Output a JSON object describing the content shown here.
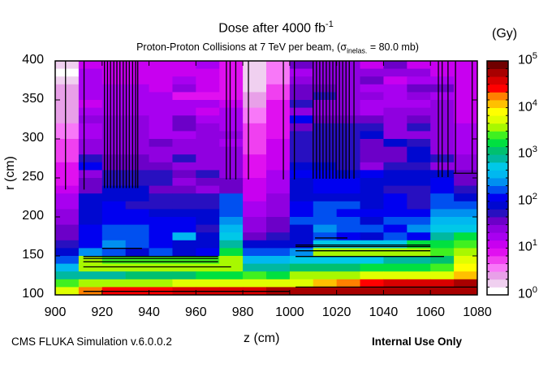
{
  "chart_data": {
    "type": "heatmap",
    "title": {
      "text": "Dose after 4000 fb",
      "sup": "-1"
    },
    "subtitle": {
      "pre": "Proton-Proton Collisions at 7 TeV per beam, (σ",
      "sub": "inelas.",
      "post": " = 80.0 mb)"
    },
    "xlabel": "z (cm)",
    "ylabel": "r (cm)",
    "xlim": [
      900,
      1080
    ],
    "ylim": [
      100,
      400
    ],
    "x_ticks": [
      "900",
      "920",
      "940",
      "960",
      "980",
      "1000",
      "1020",
      "1040",
      "1060",
      "1080"
    ],
    "y_ticks": [
      "100",
      "150",
      "200",
      "250",
      "300",
      "350",
      "400"
    ],
    "colorbar": {
      "unit": "(Gy)",
      "scale": "log",
      "range": [
        1,
        100000
      ],
      "ticks": [
        {
          "base": "10",
          "exp": "0"
        },
        {
          "base": "10",
          "exp": "1"
        },
        {
          "base": "10",
          "exp": "2"
        },
        {
          "base": "10",
          "exp": "3"
        },
        {
          "base": "10",
          "exp": "4"
        },
        {
          "base": "10",
          "exp": "5"
        }
      ],
      "palette": [
        "#ffffff",
        "#f0d0f0",
        "#e8a0e8",
        "#f878f8",
        "#f040f0",
        "#e010f0",
        "#c800f0",
        "#a800f0",
        "#9000e0",
        "#6c00c8",
        "#2810c0",
        "#0008d0",
        "#0000f0",
        "#0050f0",
        "#0090f0",
        "#00b8f0",
        "#00c8e8",
        "#00b8a0",
        "#00c070",
        "#00e040",
        "#40f020",
        "#a8f800",
        "#e0ff00",
        "#ffff00",
        "#ffc000",
        "#ff8000",
        "#ff0000",
        "#d80000",
        "#a80000",
        "#700000"
      ]
    },
    "grid": {
      "z_bins_start": [
        900,
        910,
        920,
        930,
        940,
        950,
        960,
        970,
        980,
        990,
        1000,
        1010,
        1020,
        1030,
        1040,
        1050,
        1060,
        1070
      ],
      "z_bin_width": 10,
      "r_bin_width": 10,
      "value_units": "log10(dose/Gy) x 6",
      "rows_from_r400_down": [
        [
          1,
          6,
          6,
          6,
          6,
          6,
          7,
          5,
          1,
          3,
          9,
          8,
          8,
          6,
          9,
          6,
          6,
          6
        ],
        [
          0,
          7,
          6,
          6,
          6,
          6,
          6,
          5,
          1,
          3,
          7,
          8,
          8,
          8,
          8,
          8,
          6,
          6
        ],
        [
          1,
          7,
          6,
          6,
          6,
          7,
          6,
          5,
          1,
          3,
          8,
          8,
          8,
          9,
          6,
          7,
          7,
          6
        ],
        [
          2,
          7,
          7,
          7,
          6,
          8,
          6,
          5,
          1,
          4,
          9,
          9,
          8,
          7,
          7,
          9,
          9,
          6
        ],
        [
          2,
          7,
          7,
          7,
          7,
          5,
          5,
          5,
          2,
          4,
          9,
          10,
          8,
          8,
          7,
          8,
          7,
          6
        ],
        [
          2,
          6,
          7,
          7,
          7,
          7,
          7,
          6,
          2,
          5,
          10,
          8,
          8,
          7,
          7,
          7,
          8,
          6
        ],
        [
          2,
          7,
          7,
          7,
          7,
          7,
          6,
          7,
          3,
          5,
          8,
          8,
          8,
          7,
          8,
          8,
          8,
          6
        ],
        [
          2,
          8,
          8,
          8,
          7,
          9,
          7,
          7,
          3,
          5,
          12,
          9,
          9,
          9,
          8,
          9,
          8,
          6
        ],
        [
          3,
          7,
          8,
          8,
          7,
          9,
          8,
          7,
          4,
          5,
          9,
          10,
          10,
          10,
          8,
          10,
          8,
          7
        ],
        [
          3,
          7,
          8,
          8,
          7,
          7,
          8,
          8,
          4,
          5,
          10,
          10,
          10,
          11,
          8,
          8,
          8,
          7
        ],
        [
          4,
          8,
          8,
          8,
          9,
          8,
          8,
          7,
          4,
          6,
          10,
          10,
          10,
          9,
          11,
          10,
          8,
          7
        ],
        [
          4,
          8,
          8,
          8,
          8,
          8,
          8,
          8,
          4,
          6,
          10,
          10,
          10,
          9,
          9,
          11,
          8,
          7
        ],
        [
          4,
          10,
          9,
          9,
          8,
          10,
          8,
          8,
          5,
          6,
          10,
          10,
          10,
          9,
          9,
          11,
          10,
          8
        ],
        [
          5,
          12,
          9,
          9,
          9,
          8,
          8,
          8,
          5,
          6,
          11,
          11,
          10,
          8,
          10,
          10,
          8,
          8
        ],
        [
          5,
          8,
          10,
          10,
          10,
          9,
          10,
          8,
          5,
          7,
          12,
          12,
          11,
          12,
          11,
          11,
          11,
          9
        ],
        [
          5,
          9,
          10,
          10,
          10,
          8,
          9,
          9,
          6,
          7,
          11,
          12,
          12,
          11,
          11,
          11,
          12,
          9
        ],
        [
          6,
          9,
          11,
          11,
          9,
          9,
          8,
          9,
          6,
          7,
          11,
          12,
          12,
          11,
          10,
          10,
          12,
          10
        ],
        [
          7,
          11,
          11,
          11,
          10,
          10,
          10,
          13,
          6,
          8,
          11,
          11,
          11,
          11,
          12,
          10,
          13,
          11
        ],
        [
          7,
          11,
          12,
          10,
          10,
          10,
          10,
          13,
          7,
          8,
          12,
          13,
          13,
          11,
          12,
          10,
          13,
          13
        ],
        [
          8,
          11,
          12,
          12,
          11,
          11,
          11,
          13,
          7,
          8,
          12,
          13,
          12,
          12,
          12,
          12,
          14,
          14
        ],
        [
          8,
          11,
          12,
          12,
          12,
          12,
          11,
          14,
          8,
          9,
          13,
          13,
          13,
          11,
          13,
          13,
          15,
          15
        ],
        [
          9,
          12,
          13,
          13,
          12,
          12,
          10,
          15,
          8,
          9,
          11,
          14,
          13,
          13,
          12,
          14,
          16,
          16
        ],
        [
          9,
          12,
          13,
          13,
          12,
          15,
          11,
          16,
          9,
          10,
          11,
          13,
          12,
          11,
          13,
          12,
          17,
          19
        ],
        [
          10,
          12,
          14,
          13,
          12,
          11,
          11,
          17,
          11,
          11,
          11,
          16,
          16,
          16,
          16,
          19,
          19,
          20
        ],
        [
          11,
          14,
          13,
          11,
          13,
          11,
          12,
          19,
          13,
          13,
          14,
          21,
          21,
          21,
          21,
          21,
          20,
          21
        ],
        [
          13,
          21,
          20,
          20,
          20,
          20,
          20,
          21,
          15,
          15,
          16,
          16,
          16,
          16,
          17,
          17,
          18,
          22
        ],
        [
          15,
          21,
          21,
          21,
          21,
          21,
          21,
          21,
          17,
          17,
          18,
          18,
          18,
          19,
          19,
          19,
          20,
          23
        ],
        [
          17,
          17,
          17,
          18,
          18,
          18,
          19,
          19,
          20,
          19,
          21,
          21,
          21,
          22,
          22,
          22,
          22,
          24
        ],
        [
          20,
          21,
          21,
          21,
          21,
          22,
          22,
          22,
          22,
          22,
          22,
          24,
          25,
          26,
          27,
          27,
          27,
          28
        ],
        [
          22,
          25,
          26,
          26,
          26,
          27,
          27,
          27,
          27,
          28,
          28,
          28,
          28,
          28,
          28,
          28,
          28,
          28
        ]
      ]
    },
    "geometry_lines_z_r": [
      [
        904.4,
        400,
        904.4,
        235
      ],
      [
        912.3,
        400,
        912.3,
        235
      ],
      [
        921,
        400,
        921,
        237
      ],
      [
        922.3,
        400,
        922.3,
        237
      ],
      [
        923.6,
        400,
        923.6,
        237
      ],
      [
        925,
        400,
        925,
        237
      ],
      [
        926.3,
        400,
        926.3,
        237
      ],
      [
        927.6,
        400,
        927.6,
        237
      ],
      [
        929,
        400,
        929,
        237
      ],
      [
        930.3,
        400,
        930.3,
        237
      ],
      [
        931.6,
        400,
        931.6,
        237
      ],
      [
        933,
        400,
        933,
        237
      ],
      [
        934.3,
        400,
        934.3,
        237
      ],
      [
        935.2,
        400,
        935.2,
        237
      ],
      [
        973,
        400,
        973,
        248
      ],
      [
        974.6,
        400,
        974.6,
        248
      ],
      [
        977,
        400,
        977,
        248
      ],
      [
        982.4,
        400,
        982.4,
        248
      ],
      [
        997.3,
        400,
        997.3,
        248
      ],
      [
        1002,
        400,
        1002,
        248
      ],
      [
        1010,
        400,
        1010,
        249
      ],
      [
        1011.4,
        400,
        1011.4,
        249
      ],
      [
        1012.8,
        400,
        1012.8,
        249
      ],
      [
        1014.2,
        400,
        1014.2,
        249
      ],
      [
        1015.6,
        400,
        1015.6,
        249
      ],
      [
        1017,
        400,
        1017,
        249
      ],
      [
        1018.4,
        400,
        1018.4,
        249
      ],
      [
        1019.8,
        400,
        1019.8,
        249
      ],
      [
        1021.2,
        400,
        1021.2,
        249
      ],
      [
        1022.6,
        400,
        1022.6,
        249
      ],
      [
        1024,
        400,
        1024,
        249
      ],
      [
        1025.4,
        400,
        1025.4,
        249
      ],
      [
        1027.4,
        400,
        1027.4,
        249
      ],
      [
        1063.4,
        400,
        1063.4,
        251
      ],
      [
        1065,
        400,
        1065,
        251
      ],
      [
        1067.5,
        400,
        1067.5,
        251
      ],
      [
        1070.7,
        400,
        1070.7,
        256
      ],
      [
        1077.8,
        400,
        1077.8,
        256
      ],
      [
        1069.8,
        256,
        1080,
        256
      ],
      [
        912,
        149.3,
        969.5,
        149.3
      ],
      [
        912,
        146.6,
        969.5,
        146.6
      ],
      [
        912,
        142.5,
        969.5,
        142.5
      ],
      [
        912,
        135.9,
        975,
        135.9
      ],
      [
        920,
        159.7,
        937,
        159.7
      ],
      [
        912,
        104.5,
        1000,
        104.5
      ],
      [
        1002.5,
        163.9,
        1060,
        163.9
      ],
      [
        1002.5,
        162,
        1060,
        162
      ],
      [
        1002.5,
        156.6,
        1060,
        156.6
      ],
      [
        1002.5,
        149.3,
        1065.8,
        149.3
      ],
      [
        1010.8,
        173,
        1024.6,
        173
      ],
      [
        1002.5,
        110,
        1080,
        110
      ]
    ]
  },
  "footer": {
    "left": "CMS FLUKA Simulation v.6.0.0.2",
    "right": "Internal Use Only"
  }
}
